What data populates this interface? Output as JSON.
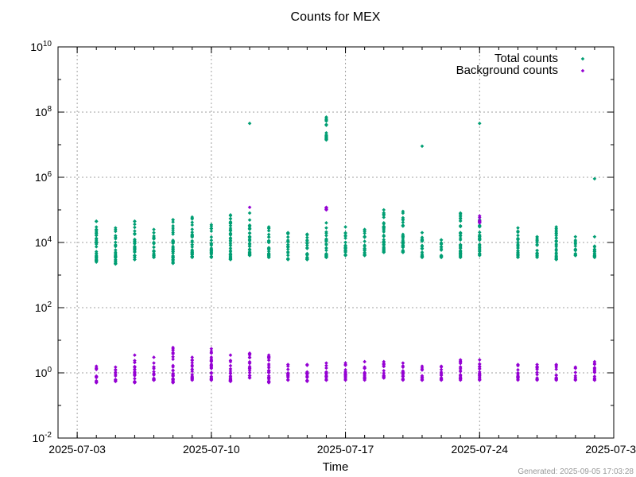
{
  "chart_data": {
    "type": "scatter",
    "title": "Counts for MEX",
    "xlabel": "Time",
    "ylabel": "",
    "yscale": "log",
    "ylim": [
      0.01,
      10000000000
    ],
    "xlim": [
      "2025-07-02",
      "2025-07-31"
    ],
    "y_ticks": [
      {
        "base": "10",
        "exp": "-2"
      },
      {
        "base": "10",
        "exp": "0"
      },
      {
        "base": "10",
        "exp": "2"
      },
      {
        "base": "10",
        "exp": "4"
      },
      {
        "base": "10",
        "exp": "6"
      },
      {
        "base": "10",
        "exp": "8"
      },
      {
        "base": "10",
        "exp": "10"
      }
    ],
    "x_ticks": [
      "2025-07-03",
      "2025-07-10",
      "2025-07-17",
      "2025-07-24",
      "2025-07-31"
    ],
    "grid": true,
    "legend_position": "top-right",
    "series": [
      {
        "name": "Total counts",
        "color": "#009e73",
        "groups": [
          {
            "x": "2025-07-04",
            "min": 2500,
            "max": 45000
          },
          {
            "x": "2025-07-05",
            "min": 2200,
            "max": 28000
          },
          {
            "x": "2025-07-06",
            "min": 3000,
            "max": 45000
          },
          {
            "x": "2025-07-07",
            "min": 3500,
            "max": 25000
          },
          {
            "x": "2025-07-08",
            "min": 2300,
            "max": 50000
          },
          {
            "x": "2025-07-09",
            "min": 3500,
            "max": 60000
          },
          {
            "x": "2025-07-10",
            "min": 3500,
            "max": 35000
          },
          {
            "x": "2025-07-11",
            "min": 3000,
            "max": 70000
          },
          {
            "x": "2025-07-12",
            "min": 4000,
            "max": 80000
          },
          {
            "x": "2025-07-12",
            "min": 45000000,
            "max": 45000000
          },
          {
            "x": "2025-07-13",
            "min": 3500,
            "max": 30000
          },
          {
            "x": "2025-07-14",
            "min": 3000,
            "max": 20000
          },
          {
            "x": "2025-07-15",
            "min": 3000,
            "max": 18000
          },
          {
            "x": "2025-07-16",
            "min": 3500,
            "max": 40000
          },
          {
            "x": "2025-07-16",
            "min": 14000000,
            "max": 70000000
          },
          {
            "x": "2025-07-17",
            "min": 4000,
            "max": 30000
          },
          {
            "x": "2025-07-18",
            "min": 4000,
            "max": 25000
          },
          {
            "x": "2025-07-19",
            "min": 5000,
            "max": 100000
          },
          {
            "x": "2025-07-20",
            "min": 5000,
            "max": 90000
          },
          {
            "x": "2025-07-21",
            "min": 3500,
            "max": 20000
          },
          {
            "x": "2025-07-21",
            "min": 9000000,
            "max": 9000000
          },
          {
            "x": "2025-07-22",
            "min": 3500,
            "max": 12000
          },
          {
            "x": "2025-07-23",
            "min": 3500,
            "max": 80000
          },
          {
            "x": "2025-07-24",
            "min": 4000,
            "max": 50000
          },
          {
            "x": "2025-07-24",
            "min": 45000000,
            "max": 45000000
          },
          {
            "x": "2025-07-26",
            "min": 3500,
            "max": 28000
          },
          {
            "x": "2025-07-27",
            "min": 3500,
            "max": 15000
          },
          {
            "x": "2025-07-28",
            "min": 3000,
            "max": 30000
          },
          {
            "x": "2025-07-29",
            "min": 4000,
            "max": 15000
          },
          {
            "x": "2025-07-30",
            "min": 3500,
            "max": 15000
          },
          {
            "x": "2025-07-30",
            "min": 900000,
            "max": 900000
          }
        ]
      },
      {
        "name": "Background counts",
        "color": "#9400d3",
        "groups": [
          {
            "x": "2025-07-04",
            "min": 0.5,
            "max": 1.6
          },
          {
            "x": "2025-07-05",
            "min": 0.55,
            "max": 1.5
          },
          {
            "x": "2025-07-06",
            "min": 0.5,
            "max": 3.5
          },
          {
            "x": "2025-07-07",
            "min": 0.6,
            "max": 3.0
          },
          {
            "x": "2025-07-08",
            "min": 0.5,
            "max": 6.0
          },
          {
            "x": "2025-07-09",
            "min": 0.6,
            "max": 3.0
          },
          {
            "x": "2025-07-10",
            "min": 0.6,
            "max": 5.5
          },
          {
            "x": "2025-07-11",
            "min": 0.55,
            "max": 3.5
          },
          {
            "x": "2025-07-12",
            "min": 0.7,
            "max": 4.0
          },
          {
            "x": "2025-07-12",
            "min": 120000,
            "max": 120000
          },
          {
            "x": "2025-07-13",
            "min": 0.5,
            "max": 3.5
          },
          {
            "x": "2025-07-14",
            "min": 0.6,
            "max": 1.8
          },
          {
            "x": "2025-07-15",
            "min": 0.55,
            "max": 1.8
          },
          {
            "x": "2025-07-16",
            "min": 0.6,
            "max": 2.0
          },
          {
            "x": "2025-07-16",
            "min": 100000,
            "max": 120000
          },
          {
            "x": "2025-07-17",
            "min": 0.6,
            "max": 2.0
          },
          {
            "x": "2025-07-18",
            "min": 0.6,
            "max": 2.2
          },
          {
            "x": "2025-07-19",
            "min": 0.7,
            "max": 2.2
          },
          {
            "x": "2025-07-20",
            "min": 0.6,
            "max": 2.0
          },
          {
            "x": "2025-07-21",
            "min": 0.6,
            "max": 1.6
          },
          {
            "x": "2025-07-22",
            "min": 0.6,
            "max": 1.6
          },
          {
            "x": "2025-07-23",
            "min": 0.6,
            "max": 2.5
          },
          {
            "x": "2025-07-24",
            "min": 0.6,
            "max": 2.5
          },
          {
            "x": "2025-07-24",
            "min": 40000,
            "max": 65000
          },
          {
            "x": "2025-07-26",
            "min": 0.6,
            "max": 1.8
          },
          {
            "x": "2025-07-27",
            "min": 0.6,
            "max": 1.8
          },
          {
            "x": "2025-07-28",
            "min": 0.6,
            "max": 1.8
          },
          {
            "x": "2025-07-29",
            "min": 0.6,
            "max": 1.5
          },
          {
            "x": "2025-07-30",
            "min": 0.6,
            "max": 2.2
          }
        ]
      }
    ]
  },
  "footer": {
    "generated": "Generated: 2025-09-05 17:03:28"
  }
}
